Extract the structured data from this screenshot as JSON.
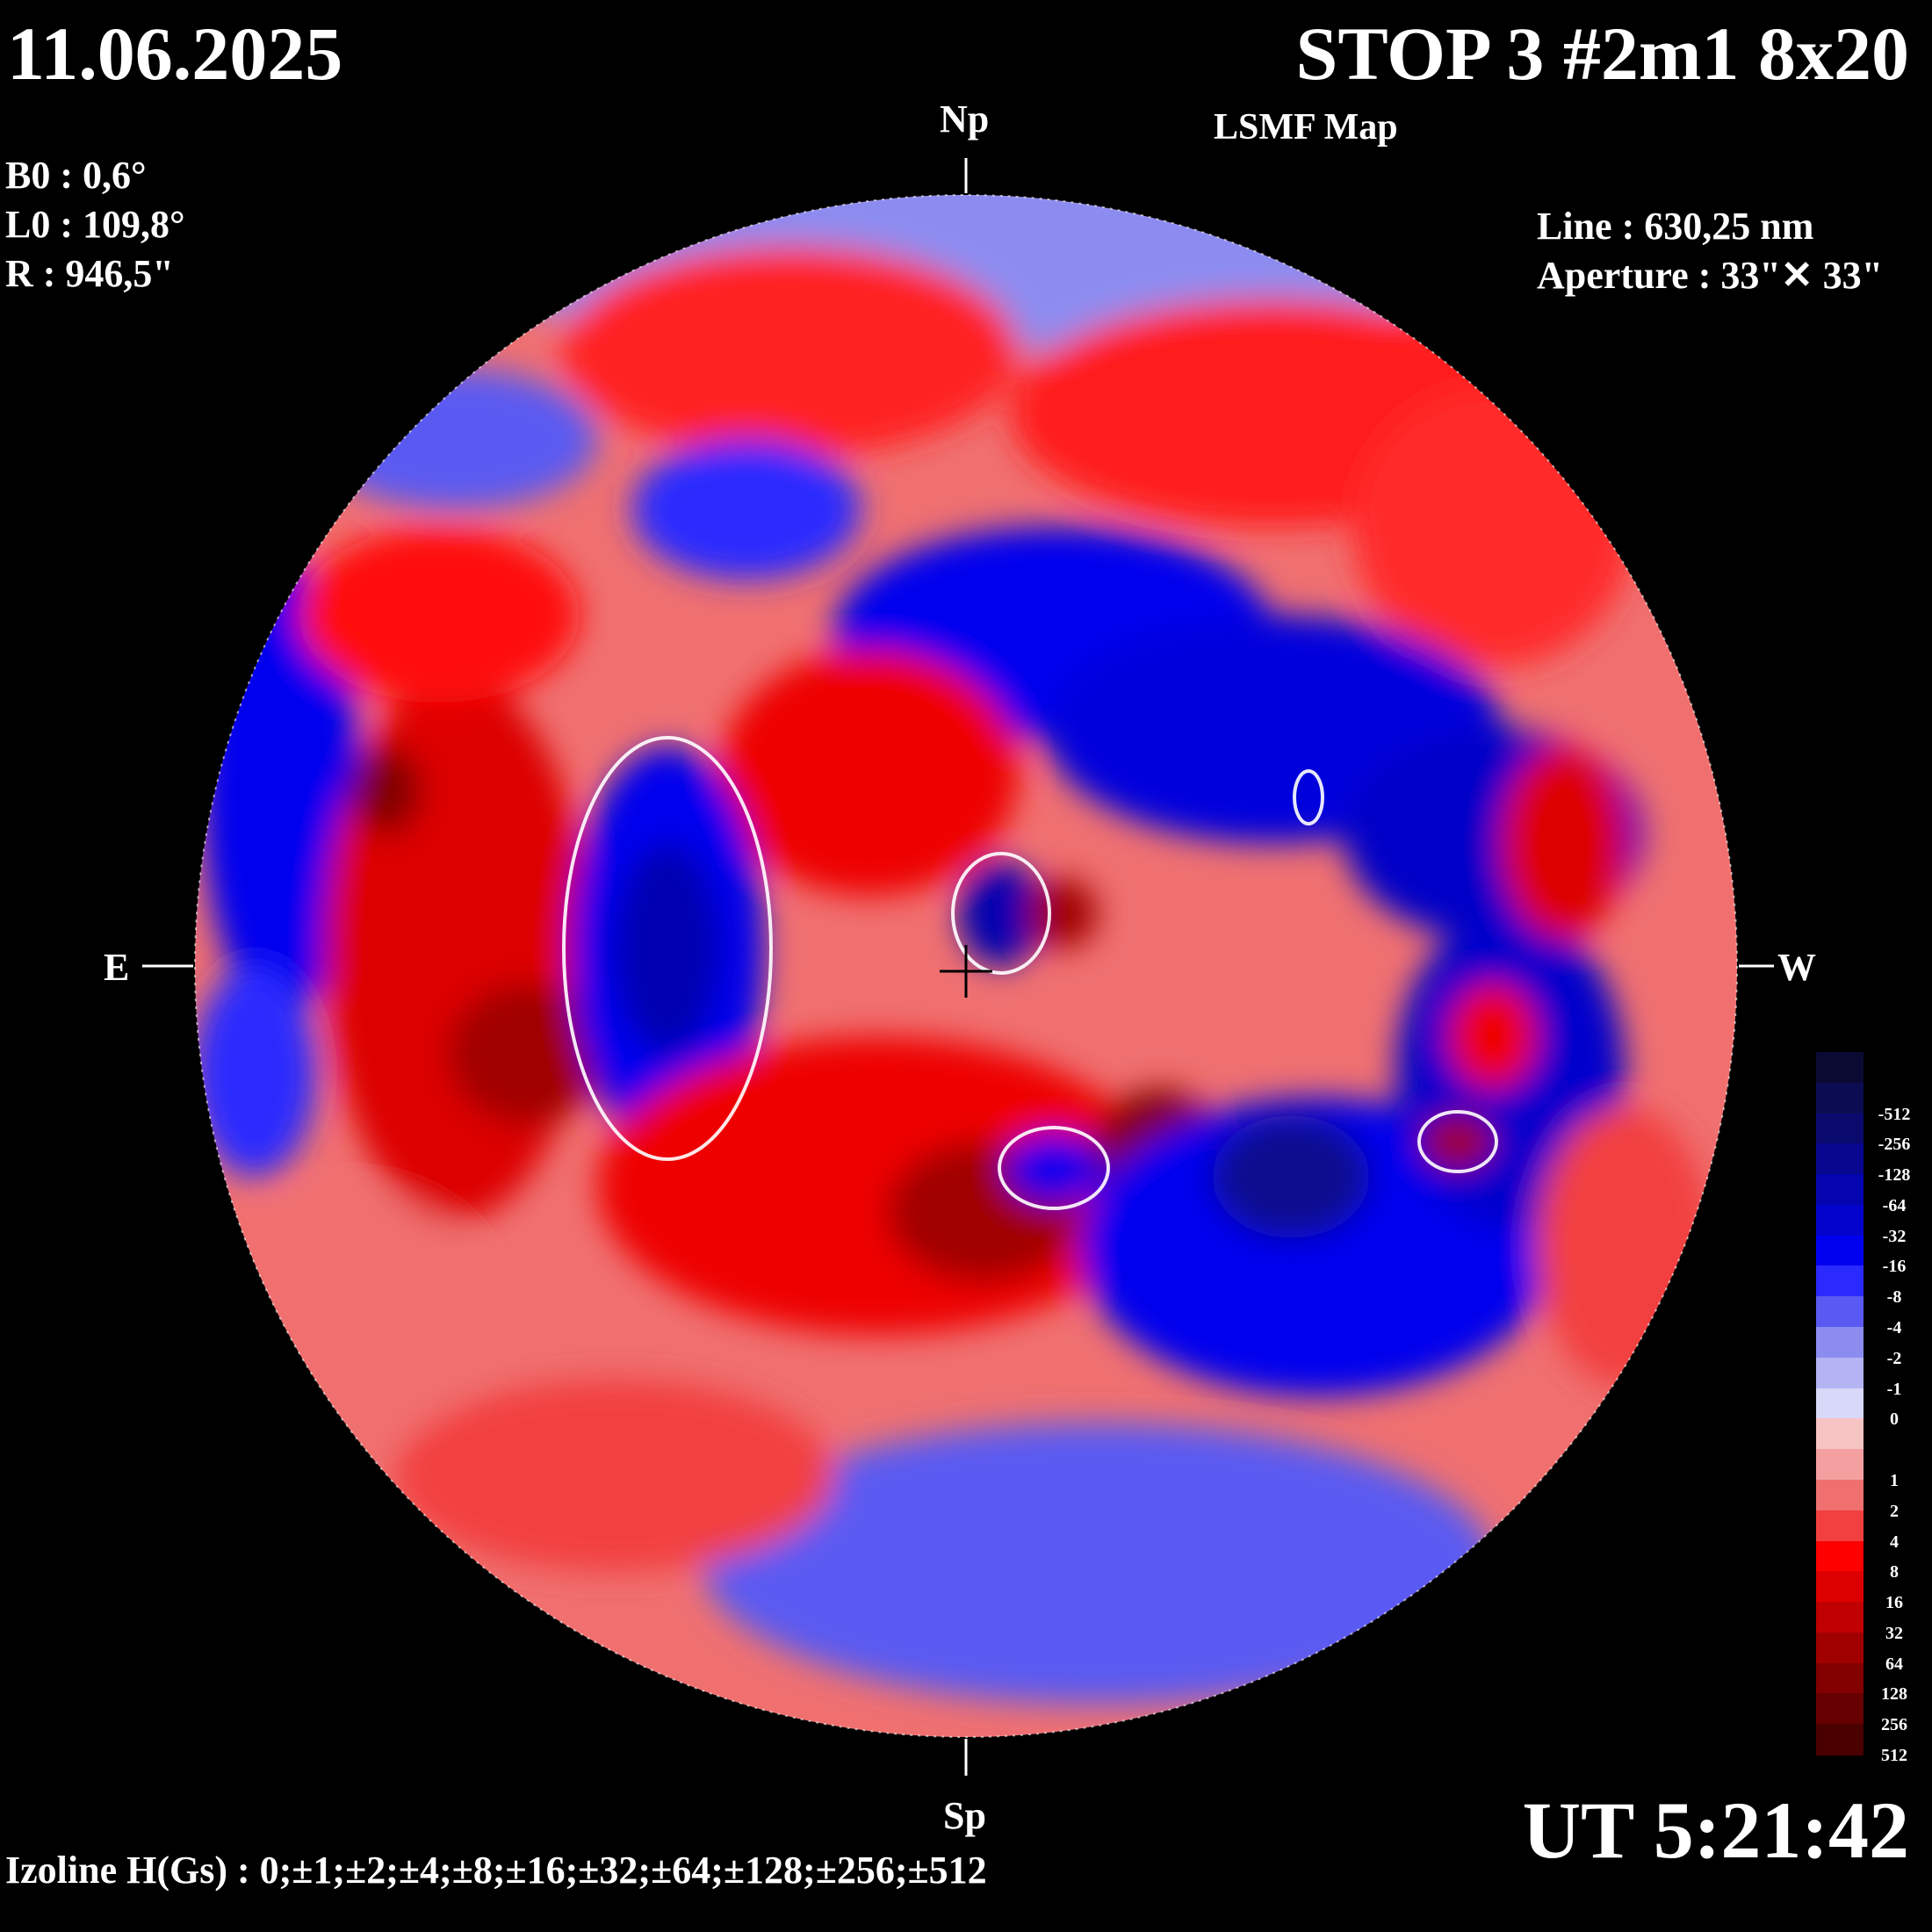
{
  "header": {
    "date": "11.06.2025",
    "title": "STOP 3 #2m1 8x20",
    "subtitle": "LSMF  Map"
  },
  "params": {
    "b0": "B0 : 0,6°",
    "l0": "L0 : 109,8°",
    "r": "R  : 946,5\"",
    "line": "Line :  630,25 nm",
    "aperture": "Aperture : 33\"✕ 33\""
  },
  "orientation": {
    "north": "Np",
    "south": "Sp",
    "east": "E",
    "west": "W"
  },
  "footer": {
    "time": "UT 5:21:42",
    "izolines": "Izoline H(Gs) : 0;±1;±2;±4;±8;±16;±32;±64;±128;±256;±512"
  },
  "legend": {
    "levels": [
      {
        "label": "",
        "color": "#0a0a33"
      },
      {
        "label": "-512",
        "color": "#0c0c52"
      },
      {
        "label": "-256",
        "color": "#0a0a6e"
      },
      {
        "label": "-128",
        "color": "#07078f"
      },
      {
        "label": "-64",
        "color": "#0505b0"
      },
      {
        "label": "-32",
        "color": "#0303cc"
      },
      {
        "label": "-16",
        "color": "#0000ee"
      },
      {
        "label": "-8",
        "color": "#2a2aff"
      },
      {
        "label": "-4",
        "color": "#5a5af2"
      },
      {
        "label": "-2",
        "color": "#8c8cf0"
      },
      {
        "label": "-1",
        "color": "#b4b4f4"
      },
      {
        "label": "0",
        "color": "#d8d8f8"
      },
      {
        "label": "",
        "color": "#f7c4c4"
      },
      {
        "label": "1",
        "color": "#f4a0a0"
      },
      {
        "label": "2",
        "color": "#f07070"
      },
      {
        "label": "4",
        "color": "#f24040"
      },
      {
        "label": "8",
        "color": "#ff0000"
      },
      {
        "label": "16",
        "color": "#dd0000"
      },
      {
        "label": "32",
        "color": "#c00000"
      },
      {
        "label": "64",
        "color": "#a00000"
      },
      {
        "label": "128",
        "color": "#820000"
      },
      {
        "label": "256",
        "color": "#660000"
      },
      {
        "label": "512",
        "color": "#4a0000"
      }
    ]
  },
  "colors": {
    "positive": "#ff0000",
    "negative": "#0000ee",
    "neutral": "#d8d8f8",
    "background": "#000000",
    "text": "#ffffff"
  }
}
